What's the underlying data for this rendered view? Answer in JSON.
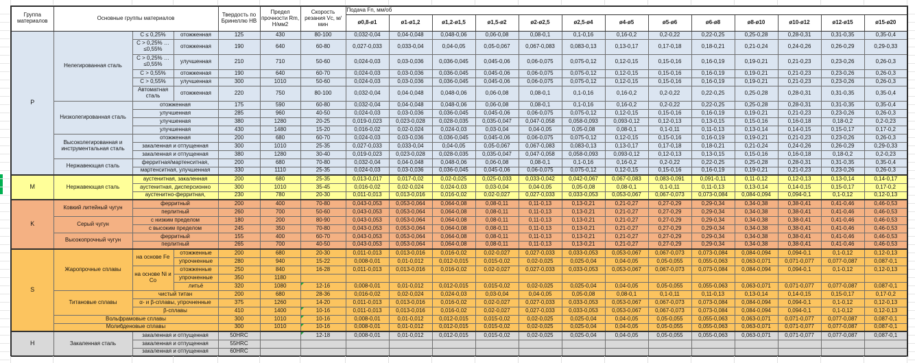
{
  "header": {
    "col_group": "Группа материалов",
    "col_main": "Основные группы материалов",
    "col_hardness": "Твердость по Бринеллю HB",
    "col_strength": "Предел прочности Rm, Н/мм2",
    "col_speed": "Скорость резания Vc, м/мин",
    "col_feed": "Подача Fn, мм/об",
    "diameters": [
      "ø0,8-ø1",
      "ø1-ø1,2",
      "ø1,2-ø1,5",
      "ø1,5-ø2",
      "ø2-ø2,5",
      "ø2,5-ø4",
      "ø4-ø5",
      "ø5-ø6",
      "ø6-ø8",
      "ø8-ø10",
      "ø10-ø12",
      "ø12-ø15",
      "ø15-ø20"
    ]
  },
  "colors": {
    "group_p": "#dbe5f1",
    "group_m": "#ffff99",
    "group_k": "#f4b183",
    "group_s": "#fcc45f",
    "group_h": "#d9d9d9",
    "comment_indicator": "#1fa43a",
    "margin_marker": "#00b050"
  },
  "feed_patterns": {
    "A": [
      "0,032-0,04",
      "0,04-0,048",
      "0,048-0,06",
      "0,06-0,08",
      "0,08-0,1",
      "0,1-0,16",
      "0,16-0,2",
      "0,2-0,22",
      "0,22-0,25",
      "0,25-0,28",
      "0,28-0,31",
      "0,31-0,35",
      "0,35-0,4"
    ],
    "B": [
      "0,027-0,033",
      "0,033-0,04",
      "0,04-0,05",
      "0,05-0,067",
      "0,067-0,083",
      "0,083-0,13",
      "0,13-0,17",
      "0,17-0,18",
      "0,18-0,21",
      "0,21-0,24",
      "0,24-0,26",
      "0,26-0,29",
      "0,29-0,33"
    ],
    "C": [
      "0,024-0,03",
      "0,03-0,036",
      "0,036-0,045",
      "0,045-0,06",
      "0,06-0,075",
      "0,075-0,12",
      "0,12-0,15",
      "0,15-0,16",
      "0,16-0,19",
      "0,19-0,21",
      "0,21-0,23",
      "0,23-0,26",
      "0,26-0,3"
    ],
    "D": [
      "0,019-0,023",
      "0,023-0,028",
      "0,028-0,035",
      "0,035-0,047",
      "0,047-0,058",
      "0,058-0,093",
      "0,093-0,12",
      "0,12-0,13",
      "0,13-0,15",
      "0,15-0,16",
      "0,16-0,18",
      "0,18-0,2",
      "0,2-0,23"
    ],
    "E": [
      "0,016-0,02",
      "0,02-0,024",
      "0,024-0,03",
      "0,03-0,04",
      "0,04-0,05",
      "0,05-0,08",
      "0,08-0,1",
      "0,1-0,11",
      "0,11-0,13",
      "0,13-0,14",
      "0,14-0,15",
      "0,15-0,17",
      "0,17-0,2"
    ],
    "F": [
      "0,013-0,017",
      "0,017-0,02",
      "0,02-0,025",
      "0,025-0,033",
      "0,033-0,042",
      "0,042-0,067",
      "0,067-0,083",
      "0,083-0,091",
      "0,091-0,11",
      "0,11-0,12",
      "0,12-0,13",
      "0,13-0,14",
      "0,14-0,17"
    ],
    "G": [
      "0,011-0,013",
      "0,013-0,016",
      "0,016-0,02",
      "0,02-0,027",
      "0,027-0,033",
      "0,033-0,053",
      "0,053-0,067",
      "0,067-0,073",
      "0,073-0,084",
      "0,084-0,094",
      "0,094-0,1",
      "0,1-0,12",
      "0,12-0,13"
    ],
    "H": [
      "0,043-0,053",
      "0,053-0,064",
      "0,064-0,08",
      "0,08-0,11",
      "0,11-0,13",
      "0,13-0,21",
      "0,21-0,27",
      "0,27-0,29",
      "0,29-0,34",
      "0,34-0,38",
      "0,38-0,41",
      "0,41-0,46",
      "0,46-0,53"
    ],
    "I": [
      "0,008-0,01",
      "0,01-0,012",
      "0,012-0,015",
      "0,015-0,02",
      "0,02-0,025",
      "0,025-0,04",
      "0,04-0,05",
      "0,05-0,055",
      "0,055-0,063",
      "0,063-0,071",
      "0,071-0,077",
      "0,077-0,087",
      "0,087-0,1"
    ]
  },
  "rows": [
    {
      "band": "p",
      "lead": [
        {
          "t": "P",
          "rs": 15,
          "cls": "grp"
        },
        {
          "t": "Нелегированная сталь",
          "rs": 6,
          "cls": "mat"
        },
        {
          "t": "C ≤ 0,25%",
          "cls": "s1"
        },
        {
          "t": "отожженная",
          "cls": "s2"
        }
      ],
      "hb": "125",
      "rm": "430",
      "vc": "80-100",
      "pattern": "A"
    },
    {
      "band": "p",
      "tall": true,
      "lead": [
        {
          "t": "C > 0,25% … ≤0,55%",
          "cls": "s1"
        },
        {
          "t": "отожженная",
          "cls": "s2"
        }
      ],
      "hb": "190",
      "rm": "640",
      "vc": "60-80",
      "pattern": "B"
    },
    {
      "band": "p",
      "tall": true,
      "lead": [
        {
          "t": "C > 0,25% … ≤0,55%",
          "cls": "s1"
        },
        {
          "t": "улучшенная",
          "cls": "s2"
        }
      ],
      "hb": "210",
      "rm": "710",
      "vc": "50-60",
      "pattern": "C"
    },
    {
      "band": "p",
      "lead": [
        {
          "t": "C > 0,55%",
          "cls": "s1"
        },
        {
          "t": "отожженная",
          "cls": "s2"
        }
      ],
      "hb": "190",
      "rm": "640",
      "vc": "60-70",
      "pattern": "C"
    },
    {
      "band": "p",
      "lead": [
        {
          "t": "C > 0,55%",
          "cls": "s1"
        },
        {
          "t": "улучшенная",
          "cls": "s2"
        }
      ],
      "hb": "300",
      "rm": "1010",
      "vc": "50-60",
      "pattern": "C"
    },
    {
      "band": "p",
      "tall": true,
      "lead": [
        {
          "t": "Автоматная сталь",
          "cls": "s1"
        },
        {
          "t": "отожженная",
          "cls": "s2"
        }
      ],
      "hb": "220",
      "rm": "750",
      "vc": "80-100",
      "pattern": "A"
    },
    {
      "band": "p",
      "lead": [
        {
          "t": "Низколегированная сталь",
          "rs": 4,
          "cls": "mat"
        },
        {
          "t": "отожженная",
          "cs": 2,
          "cls": "s1"
        }
      ],
      "hb": "175",
      "rm": "590",
      "vc": "60-80",
      "pattern": "A"
    },
    {
      "band": "p",
      "lead": [
        {
          "t": "улучшенная",
          "cs": 2,
          "cls": "s1"
        }
      ],
      "hb": "285",
      "rm": "960",
      "vc": "40-50",
      "pattern": "C"
    },
    {
      "band": "p",
      "lead": [
        {
          "t": "улучшенная",
          "cs": 2,
          "cls": "s1"
        }
      ],
      "hb": "380",
      "rm": "1280",
      "vc": "20-25",
      "pattern": "D"
    },
    {
      "band": "p",
      "lead": [
        {
          "t": "улучшенная",
          "cs": 2,
          "cls": "s1"
        }
      ],
      "hb": "430",
      "rm": "1480",
      "vc": "15-20",
      "pattern": "E"
    },
    {
      "band": "p",
      "lead": [
        {
          "t": "Высоколегированная и инструментальная сталь",
          "rs": 3,
          "cls": "mat"
        },
        {
          "t": "отожженная",
          "cs": 2,
          "cls": "s1"
        }
      ],
      "hb": "200",
      "rm": "680",
      "vc": "60-70",
      "pattern": "C"
    },
    {
      "band": "p",
      "lead": [
        {
          "t": "закаленная и отпущенная",
          "cs": 2,
          "cls": "s1"
        }
      ],
      "hb": "300",
      "rm": "1010",
      "vc": "25-35",
      "pattern": "B"
    },
    {
      "band": "p",
      "lead": [
        {
          "t": "закаленная и отпущенная",
          "cs": 2,
          "cls": "s1"
        }
      ],
      "hb": "380",
      "rm": "1280",
      "vc": "30-40",
      "pattern": "D"
    },
    {
      "band": "p",
      "lead": [
        {
          "t": "Нержавеющая сталь",
          "rs": 2,
          "cls": "mat"
        },
        {
          "t": "ферритная/мартенситная,",
          "cs": 2,
          "cls": "s1"
        }
      ],
      "hb": "200",
      "rm": "680",
      "vc": "70-80",
      "pattern": "A"
    },
    {
      "band": "p",
      "lead": [
        {
          "t": "мартенситная, улучшенная",
          "cs": 2,
          "cls": "s1"
        }
      ],
      "hb": "330",
      "rm": "1110",
      "vc": "25-35",
      "pattern": "C"
    },
    {
      "band": "m",
      "sec": true,
      "lead": [
        {
          "t": "M",
          "rs": 3,
          "cls": "grp"
        },
        {
          "t": "Нержавеющая сталь",
          "rs": 3,
          "cls": "mat"
        },
        {
          "t": "аустенитная, закаленная",
          "cs": 2,
          "cls": "s1"
        }
      ],
      "hb": "200",
      "rm": "680",
      "vc": "25-35",
      "pattern": "F"
    },
    {
      "band": "m",
      "lead": [
        {
          "t": "аустенитная, дисперсионно",
          "cs": 2,
          "cls": "s1"
        }
      ],
      "hb": "300",
      "rm": "1010",
      "vc": "35-45",
      "pattern": "E"
    },
    {
      "band": "m",
      "lead": [
        {
          "t": "аустенитно-ферритная,",
          "cs": 2,
          "cls": "s1"
        }
      ],
      "hb": "230",
      "rm": "780",
      "vc": "20-30",
      "pattern": "G"
    },
    {
      "band": "k",
      "sec": true,
      "lead": [
        {
          "t": "K",
          "rs": 6,
          "cls": "grp"
        },
        {
          "t": "Ковкий литейный чугун",
          "rs": 2,
          "cls": "mat"
        },
        {
          "t": "ферритный",
          "cs": 2,
          "cls": "s1"
        }
      ],
      "hb": "200",
      "rm": "400",
      "vc": "70-80",
      "pattern": "H"
    },
    {
      "band": "k",
      "lead": [
        {
          "t": "перлитный",
          "cs": 2,
          "cls": "s1"
        }
      ],
      "hb": "260",
      "rm": "700",
      "vc": "50-60",
      "pattern": "H"
    },
    {
      "band": "k",
      "lead": [
        {
          "t": "Серый чугун",
          "rs": 2,
          "cls": "mat"
        },
        {
          "t": "с низким пределом",
          "cs": 2,
          "cls": "s1"
        }
      ],
      "hb": "180",
      "rm": "200",
      "vc": "80-90",
      "pattern": "H"
    },
    {
      "band": "k",
      "lead": [
        {
          "t": "с высоким пределом",
          "cs": 2,
          "cls": "s1"
        }
      ],
      "hb": "245",
      "rm": "350",
      "vc": "70-80",
      "pattern": "H"
    },
    {
      "band": "k",
      "lead": [
        {
          "t": "Высокопрочный чугун",
          "rs": 2,
          "cls": "mat"
        },
        {
          "t": "ферритный",
          "cs": 2,
          "cls": "s1"
        }
      ],
      "hb": "155",
      "rm": "400",
      "vc": "60-70",
      "pattern": "H"
    },
    {
      "band": "k",
      "lead": [
        {
          "t": "перлитный",
          "cs": 2,
          "cls": "s1"
        }
      ],
      "hb": "265",
      "rm": "700",
      "vc": "40-50",
      "pattern": "H"
    },
    {
      "band": "s",
      "sec": true,
      "lead": [
        {
          "t": "S",
          "rs": 10,
          "cls": "grp"
        },
        {
          "t": "Жаропрочные сплавы",
          "rs": 5,
          "cls": "mat"
        },
        {
          "t": "на основе Fe",
          "rs": 2,
          "cls": "s1"
        },
        {
          "t": "отожженные",
          "cls": "s2"
        }
      ],
      "hb": "200",
      "rm": "680",
      "vc": "20-30",
      "pattern": "G"
    },
    {
      "band": "s",
      "lead": [
        {
          "t": "упрочненные",
          "cls": "s2"
        }
      ],
      "hb": "280",
      "rm": "940",
      "vc": "15-22",
      "pattern": "I"
    },
    {
      "band": "s",
      "lead": [
        {
          "t": "на основе Ni и Co",
          "rs": 3,
          "cls": "s1"
        },
        {
          "t": "отожженные",
          "cls": "s2"
        }
      ],
      "hb": "250",
      "rm": "840",
      "vc": "16-28",
      "pattern": "G"
    },
    {
      "band": "s",
      "lead": [
        {
          "t": "упрочненные",
          "cls": "s2"
        }
      ],
      "hb": "350",
      "rm": "1180",
      "vc": "",
      "pattern": null
    },
    {
      "band": "s",
      "lead": [
        {
          "t": "литьё",
          "cls": "s2"
        }
      ],
      "hb": "320",
      "rm": "1080",
      "vc": "12-16",
      "note": true,
      "pattern": "I"
    },
    {
      "band": "s",
      "lead": [
        {
          "t": "Титановые сплавы",
          "rs": 3,
          "cls": "mat"
        },
        {
          "t": "чистый титан",
          "cs": 2,
          "cls": "s1"
        }
      ],
      "hb": "200",
      "rm": "680",
      "vc": "28-36",
      "pattern": "E"
    },
    {
      "band": "s",
      "lead": [
        {
          "t": "α- и β-сплавы, упрочненные",
          "cs": 2,
          "cls": "s1"
        }
      ],
      "hb": "375",
      "rm": "1260",
      "vc": "14-20",
      "pattern": "G"
    },
    {
      "band": "s",
      "lead": [
        {
          "t": "β-сплавы",
          "cs": 2,
          "cls": "s1"
        }
      ],
      "hb": "410",
      "rm": "1400",
      "vc": "10-16",
      "note": true,
      "pattern": "G"
    },
    {
      "band": "s",
      "lead": [
        {
          "t": "Вольфрамовые сплавы",
          "cs": 3,
          "cls": "mat"
        }
      ],
      "hb": "300",
      "rm": "1010",
      "vc": "10-16",
      "note": true,
      "pattern": "I"
    },
    {
      "band": "s",
      "lead": [
        {
          "t": "Молибденовые сплавы",
          "cs": 3,
          "cls": "mat"
        }
      ],
      "hb": "300",
      "rm": "1010",
      "vc": "10-16",
      "note": true,
      "pattern": "I"
    },
    {
      "band": "h",
      "sec": true,
      "lead": [
        {
          "t": "H",
          "rs": 3,
          "cls": "grp"
        },
        {
          "t": "Закаленная сталь",
          "rs": 3,
          "cls": "mat"
        },
        {
          "t": "закаленная и отпущенная",
          "cs": 2,
          "cls": "s1"
        }
      ],
      "hb": "50HRC",
      "rm": "",
      "vc": "12-18",
      "note": true,
      "pattern": "I"
    },
    {
      "band": "h",
      "lead": [
        {
          "t": "закаленная и отпущенная",
          "cs": 2,
          "cls": "s1"
        }
      ],
      "hb": "55HRC",
      "rm": "",
      "vc": "",
      "pattern": null
    },
    {
      "band": "h",
      "lead": [
        {
          "t": "закаленная и отпущенная",
          "cs": 2,
          "cls": "s1"
        }
      ],
      "hb": "60HRC",
      "rm": "",
      "vc": "",
      "pattern": null
    }
  ]
}
